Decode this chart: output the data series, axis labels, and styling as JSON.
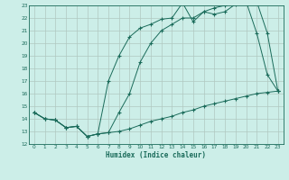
{
  "title": "",
  "xlabel": "Humidex (Indice chaleur)",
  "bg_color": "#cceee8",
  "grid_color": "#b0c8c0",
  "line_color": "#1a6b5a",
  "xlim": [
    -0.5,
    23.5
  ],
  "ylim": [
    12,
    23
  ],
  "xticks": [
    0,
    1,
    2,
    3,
    4,
    5,
    6,
    7,
    8,
    9,
    10,
    11,
    12,
    13,
    14,
    15,
    16,
    17,
    18,
    19,
    20,
    21,
    22,
    23
  ],
  "yticks": [
    12,
    13,
    14,
    15,
    16,
    17,
    18,
    19,
    20,
    21,
    22,
    23
  ],
  "line1_x": [
    0,
    1,
    2,
    3,
    4,
    5,
    6,
    7,
    8,
    9,
    10,
    11,
    12,
    13,
    14,
    15,
    16,
    17,
    18,
    19,
    20,
    21,
    22,
    23
  ],
  "line1_y": [
    14.5,
    14.0,
    13.9,
    13.3,
    13.4,
    12.6,
    12.8,
    12.9,
    13.0,
    13.2,
    13.5,
    13.8,
    14.0,
    14.2,
    14.5,
    14.7,
    15.0,
    15.2,
    15.4,
    15.6,
    15.8,
    16.0,
    16.1,
    16.2
  ],
  "line2_x": [
    0,
    1,
    2,
    3,
    4,
    5,
    6,
    7,
    8,
    9,
    10,
    11,
    12,
    13,
    14,
    15,
    16,
    17,
    18,
    19,
    20,
    21,
    22,
    23
  ],
  "line2_y": [
    14.5,
    14.0,
    13.9,
    13.3,
    13.4,
    12.6,
    12.8,
    17.0,
    19.0,
    20.5,
    21.2,
    21.5,
    21.9,
    22.0,
    23.2,
    21.7,
    22.5,
    22.3,
    22.5,
    23.1,
    23.3,
    20.8,
    17.5,
    16.2
  ],
  "line3_x": [
    0,
    1,
    2,
    3,
    4,
    5,
    6,
    7,
    8,
    9,
    10,
    11,
    12,
    13,
    14,
    15,
    16,
    17,
    18,
    19,
    20,
    21,
    22,
    23
  ],
  "line3_y": [
    14.5,
    14.0,
    13.9,
    13.3,
    13.4,
    12.6,
    12.8,
    12.9,
    14.5,
    16.0,
    18.5,
    20.0,
    21.0,
    21.5,
    22.0,
    22.0,
    22.5,
    22.8,
    23.0,
    23.2,
    23.3,
    23.3,
    20.8,
    16.2
  ]
}
